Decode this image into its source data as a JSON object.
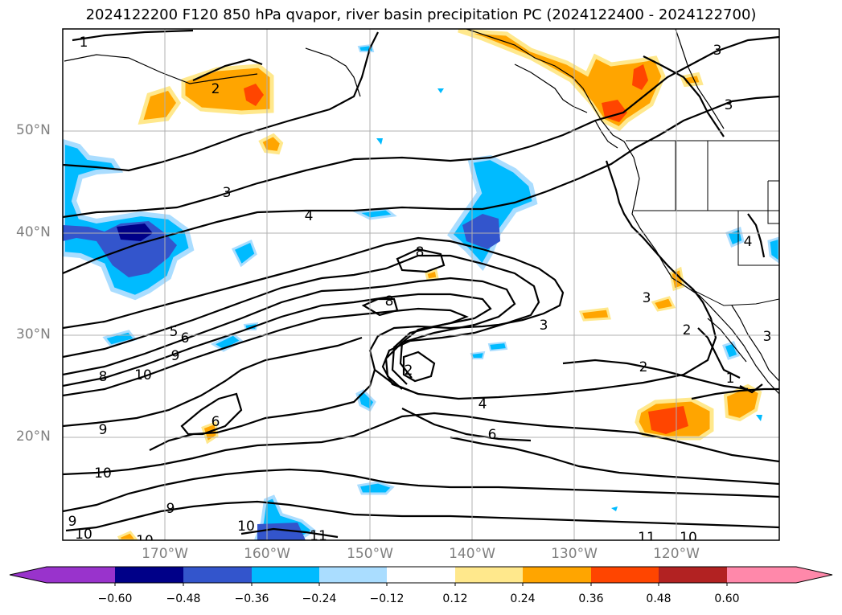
{
  "title": "2024122200 F120 850 hPa qvapor, river basin precipitation PC (2024122400 - 2024122700)",
  "lat_labels": [
    "50°N",
    "40°N",
    "30°N",
    "20°N"
  ],
  "lon_labels": [
    "170°W",
    "160°W",
    "150°W",
    "140°W",
    "130°W",
    "120°W"
  ],
  "colorbar": {
    "colors": [
      "#9933cc",
      "#000088",
      "#3355cc",
      "#00bbff",
      "#aaddff",
      "#ffffff",
      "#ffe88c",
      "#ffa500",
      "#ff4500",
      "#b22222",
      "#ff88aa"
    ],
    "ticks": [
      "−0.60",
      "−0.48",
      "−0.36",
      "−0.24",
      "−0.12",
      "0.12",
      "0.24",
      "0.36",
      "0.48",
      "0.60"
    ]
  },
  "contour_labels": [
    "1",
    "2",
    "3",
    "3",
    "3",
    "4",
    "8",
    "8",
    "3",
    "2",
    "2",
    "4",
    "6",
    "5",
    "6",
    "9",
    "8",
    "10",
    "9",
    "10",
    "9",
    "6",
    "9",
    "10",
    "10",
    "11",
    "10",
    "11",
    "10",
    "3",
    "2",
    "4",
    "3",
    "1"
  ]
}
